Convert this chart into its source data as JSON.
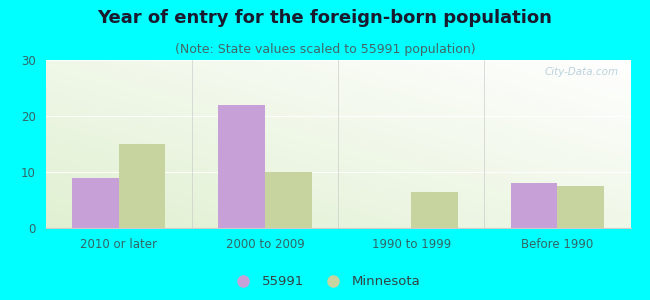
{
  "categories": [
    "2010 or later",
    "2000 to 2009",
    "1990 to 1999",
    "Before 1990"
  ],
  "values_55991": [
    9,
    22,
    0,
    8
  ],
  "values_minnesota": [
    15,
    10,
    6.5,
    7.5
  ],
  "bar_color_55991": "#c8a0d8",
  "bar_color_minnesota": "#c8d4a0",
  "title": "Year of entry for the foreign-born population",
  "subtitle": "(Note: State values scaled to 55991 population)",
  "legend_label_1": "55991",
  "legend_label_2": "Minnesota",
  "ylim": [
    0,
    30
  ],
  "yticks": [
    0,
    10,
    20,
    30
  ],
  "background_color": "#00FFFF",
  "watermark": "City-Data.com",
  "title_fontsize": 13,
  "subtitle_fontsize": 9,
  "tick_fontsize": 8.5,
  "legend_fontsize": 9.5
}
